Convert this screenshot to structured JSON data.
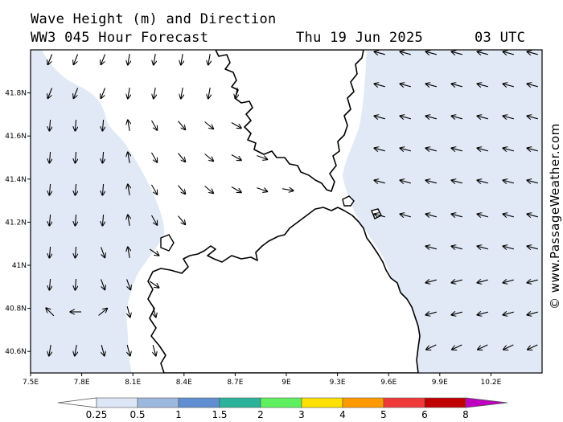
{
  "header": {
    "title": "Wave Height (m) and Direction",
    "model": "WW3 045 Hour Forecast",
    "date": "Thu 19 Jun 2025",
    "time": "03 UTC"
  },
  "credit": "© www.PassageWeather.com",
  "map": {
    "lon_range": [
      7.5,
      10.5
    ],
    "lat_range": [
      40.5,
      42.0
    ],
    "x_ticks": [
      {
        "lon": 7.5,
        "label": "7.5E"
      },
      {
        "lon": 7.8,
        "label": "7.8E"
      },
      {
        "lon": 8.1,
        "label": "8.1E"
      },
      {
        "lon": 8.4,
        "label": "8.4E"
      },
      {
        "lon": 8.7,
        "label": "8.7E"
      },
      {
        "lon": 9.0,
        "label": "9E"
      },
      {
        "lon": 9.3,
        "label": "9.3E"
      },
      {
        "lon": 9.6,
        "label": "9.6E"
      },
      {
        "lon": 9.9,
        "label": "9.9E"
      },
      {
        "lon": 10.2,
        "label": "10.2E"
      }
    ],
    "y_ticks": [
      {
        "lat": 41.8,
        "label": "41.8N"
      },
      {
        "lat": 41.6,
        "label": "41.6N"
      },
      {
        "lat": 41.4,
        "label": "41.4N"
      },
      {
        "lat": 41.2,
        "label": "41.2N"
      },
      {
        "lat": 41.0,
        "label": "41N"
      },
      {
        "lat": 40.8,
        "label": "40.8N"
      },
      {
        "lat": 40.6,
        "label": "40.6N"
      }
    ],
    "colors": {
      "sea_calm": "#ffffff",
      "wave_0_25_to_0_5": "#e1e9f6",
      "land": "#ffffff",
      "coast": "#000000"
    }
  },
  "colorbar": {
    "labels": [
      "0.25",
      "0.5",
      "1",
      "1.5",
      "2",
      "3",
      "4",
      "5",
      "6",
      "8"
    ],
    "colors": [
      "#ffffff",
      "#dde6f5",
      "#9db8de",
      "#5f8fd0",
      "#2ab39a",
      "#5ff05f",
      "#ffe000",
      "#ff9900",
      "#f03a3a",
      "#c00000",
      "#c000c0"
    ]
  },
  "chart_data": {
    "type": "vector-field",
    "units": "m",
    "note_direction": "arrows point toward wave travel direction",
    "west_sea": [
      {
        "lon": 7.6,
        "lat": 41.95,
        "dir": "SW"
      },
      {
        "lon": 7.75,
        "lat": 41.95,
        "dir": "SSW"
      },
      {
        "lon": 7.9,
        "lat": 41.95,
        "dir": "S"
      },
      {
        "lon": 8.05,
        "lat": 41.95,
        "dir": "SSW"
      },
      {
        "lon": 7.6,
        "lat": 41.8,
        "dir": "SSW"
      },
      {
        "lon": 7.75,
        "lat": 41.8,
        "dir": "S"
      },
      {
        "lon": 8.2,
        "lat": 41.8,
        "dir": "S"
      },
      {
        "lon": 8.5,
        "lat": 41.8,
        "dir": "SSE"
      },
      {
        "lon": 8.7,
        "lat": 41.6,
        "dir": "SE"
      },
      {
        "lon": 8.7,
        "lat": 41.4,
        "dir": "ESE"
      },
      {
        "lon": 8.9,
        "lat": 41.2,
        "dir": "E"
      },
      {
        "lon": 7.7,
        "lat": 40.8,
        "dir": "NW"
      },
      {
        "lon": 7.8,
        "lat": 40.8,
        "dir": "W"
      }
    ],
    "east_sea": [
      {
        "lon": 9.9,
        "lat": 41.95,
        "dir": "W"
      },
      {
        "lon": 10.2,
        "lat": 41.6,
        "dir": "W"
      },
      {
        "lon": 9.8,
        "lat": 41.2,
        "dir": "W"
      },
      {
        "lon": 9.9,
        "lat": 40.8,
        "dir": "WSW"
      },
      {
        "lon": 10.2,
        "lat": 40.6,
        "dir": "SW"
      }
    ],
    "dominant_band": "0.25-0.5"
  }
}
